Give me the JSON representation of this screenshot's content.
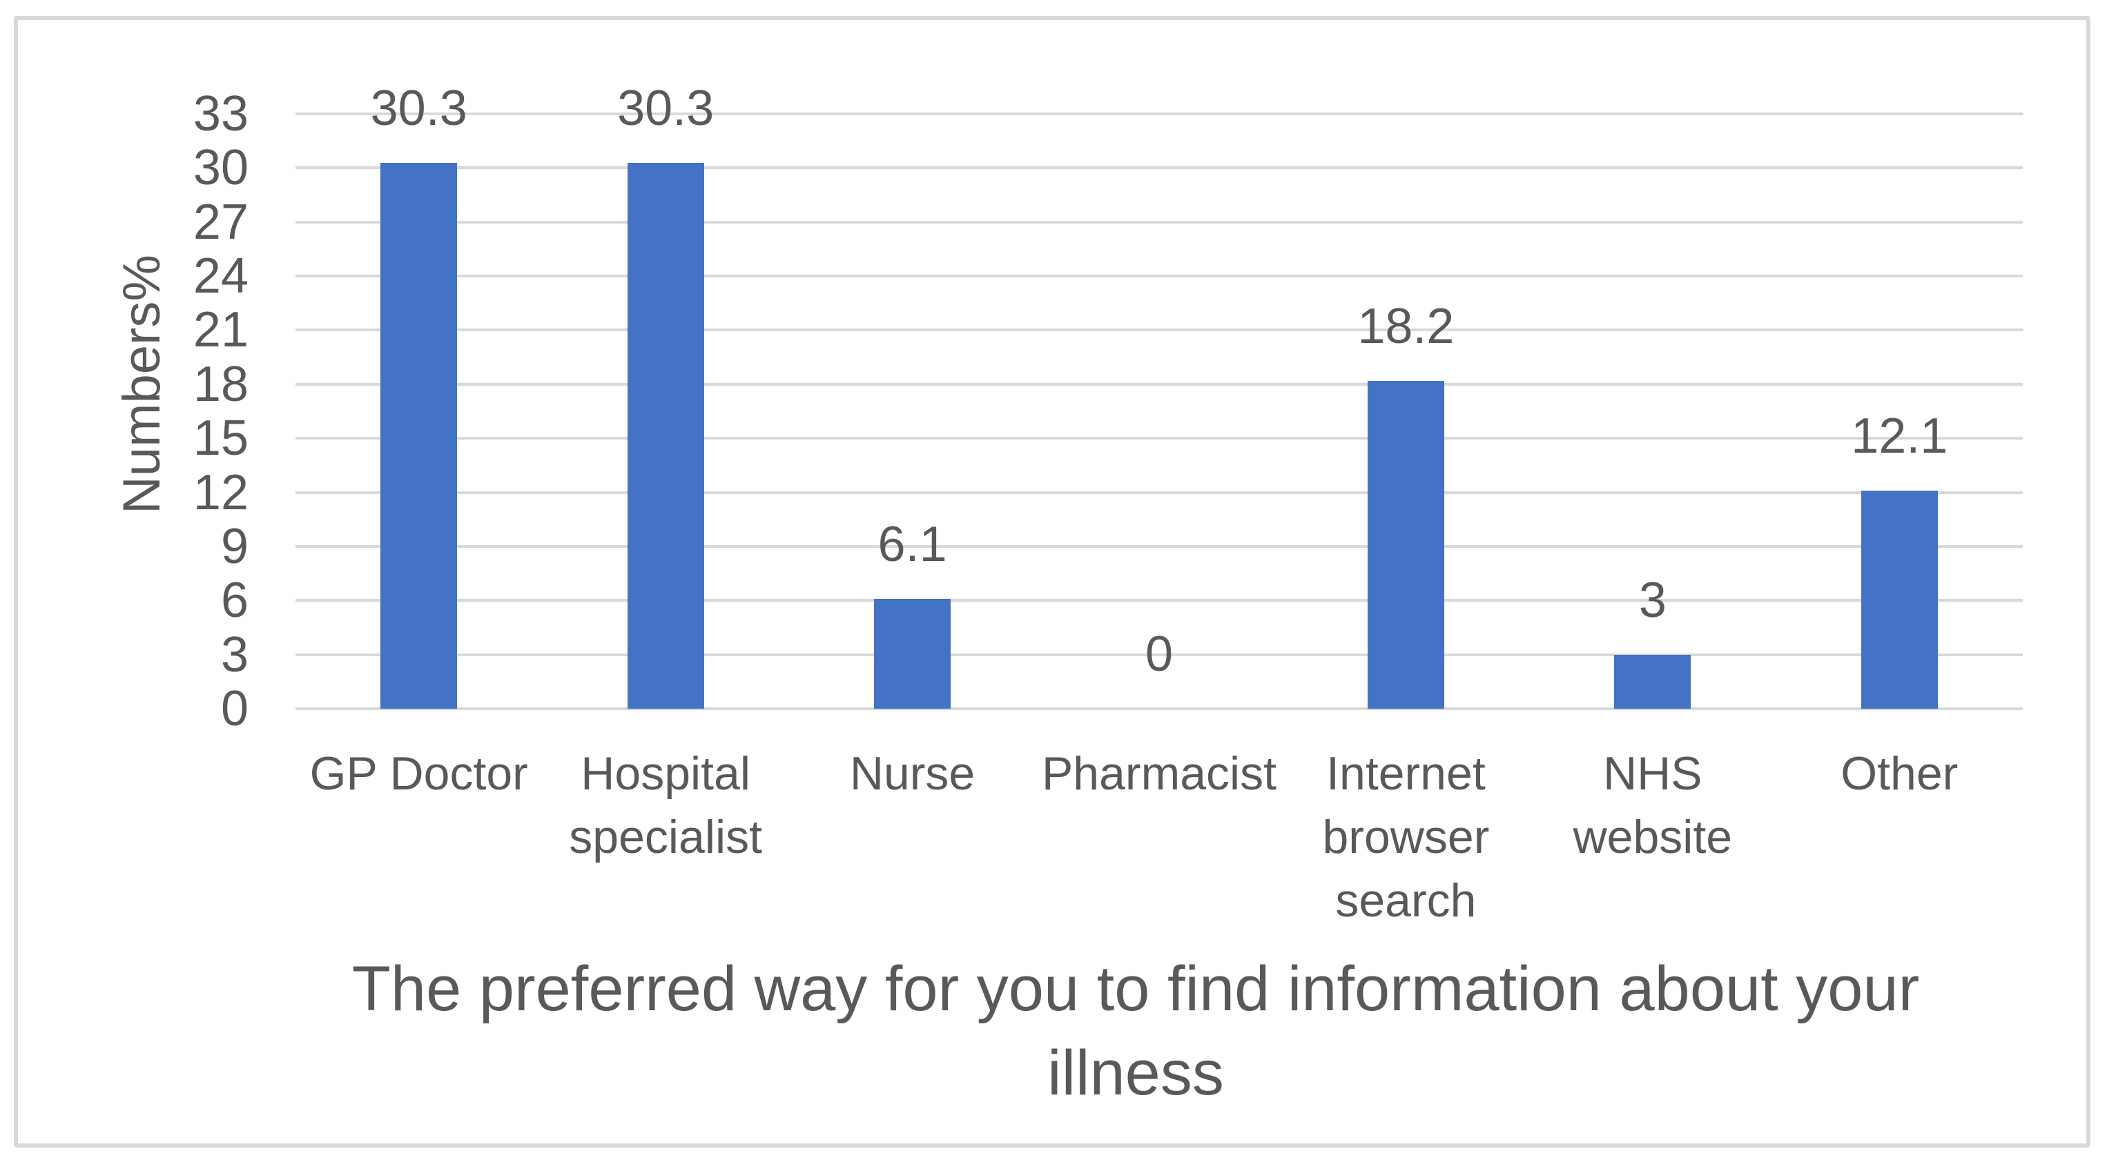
{
  "chart_data": {
    "type": "bar",
    "categories": [
      "GP Doctor",
      "Hospital specialist",
      "Nurse",
      "Pharmacist",
      "Internet browser search",
      "NHS website",
      "Other"
    ],
    "values": [
      30.3,
      30.3,
      6.1,
      0,
      18.2,
      3,
      12.1
    ],
    "data_labels": [
      "30.3",
      "30.3",
      "6.1",
      "0",
      "18.2",
      "3",
      "12.1"
    ],
    "ylabel": "Numbers%",
    "xlabel": "The preferred way for you to find information about your illness",
    "xlabel_lines": [
      "The preferred way for you to find information about your",
      "illness"
    ],
    "ylim": [
      0,
      33
    ],
    "yticks": [
      0,
      3,
      6,
      9,
      12,
      15,
      18,
      21,
      24,
      27,
      30,
      33
    ],
    "grid": true,
    "legend": false,
    "data_labels_shown": true,
    "colors": {
      "bar": "#4472C4",
      "gridline": "#D9D9D9",
      "text": "#595959",
      "border": "#D9D9D9",
      "background": "#FFFFFF"
    }
  }
}
